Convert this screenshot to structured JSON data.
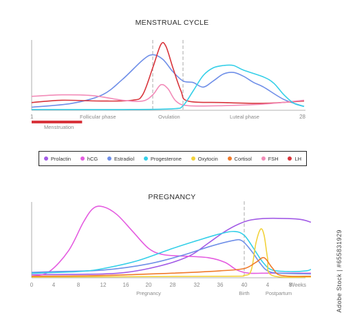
{
  "chart_data": [
    {
      "type": "line",
      "title": "MENSTRUAL CYCLE",
      "x_range": [
        1,
        28
      ],
      "x_end_labels": [
        "1",
        "28"
      ],
      "phase_labels": [
        "Follicular phase",
        "Ovulation",
        "Luteal phase"
      ],
      "band_label": "Menstruation",
      "band_range": [
        1,
        6
      ],
      "ovulation_window": [
        13,
        16
      ],
      "series": [
        {
          "name": "Estradiol",
          "color": "#6f8fe8",
          "points": [
            [
              1,
              0.04
            ],
            [
              5,
              0.09
            ],
            [
              8,
              0.2
            ],
            [
              10,
              0.4
            ],
            [
              12,
              0.65
            ],
            [
              13,
              0.72
            ],
            [
              14,
              0.66
            ],
            [
              15,
              0.5
            ],
            [
              16,
              0.38
            ],
            [
              17,
              0.36
            ],
            [
              18,
              0.3
            ],
            [
              19,
              0.38
            ],
            [
              20,
              0.47
            ],
            [
              21,
              0.49
            ],
            [
              22,
              0.44
            ],
            [
              23,
              0.36
            ],
            [
              24,
              0.3
            ],
            [
              26,
              0.14
            ],
            [
              28,
              0.05
            ]
          ]
        },
        {
          "name": "LH",
          "color": "#d8343b",
          "points": [
            [
              1,
              0.1
            ],
            [
              4,
              0.13
            ],
            [
              8,
              0.12
            ],
            [
              11,
              0.13
            ],
            [
              12,
              0.2
            ],
            [
              13,
              0.55
            ],
            [
              13.8,
              0.85
            ],
            [
              14.3,
              0.83
            ],
            [
              15,
              0.55
            ],
            [
              15.8,
              0.25
            ],
            [
              16.5,
              0.12
            ],
            [
              20,
              0.1
            ],
            [
              24,
              0.09
            ],
            [
              28,
              0.12
            ]
          ]
        },
        {
          "name": "FSH",
          "color": "#f28bb8",
          "points": [
            [
              1,
              0.18
            ],
            [
              4,
              0.2
            ],
            [
              7,
              0.19
            ],
            [
              10,
              0.13
            ],
            [
              12,
              0.12
            ],
            [
              13,
              0.2
            ],
            [
              13.8,
              0.33
            ],
            [
              14.5,
              0.28
            ],
            [
              15.3,
              0.12
            ],
            [
              16.5,
              0.06
            ],
            [
              20,
              0.06
            ],
            [
              24,
              0.08
            ],
            [
              28,
              0.13
            ]
          ]
        },
        {
          "name": "Progesterone",
          "color": "#34cfe8",
          "points": [
            [
              1,
              0.01
            ],
            [
              10,
              0.01
            ],
            [
              15,
              0.02
            ],
            [
              16,
              0.06
            ],
            [
              17,
              0.25
            ],
            [
              18,
              0.45
            ],
            [
              19,
              0.55
            ],
            [
              20,
              0.58
            ],
            [
              21,
              0.58
            ],
            [
              22,
              0.52
            ],
            [
              24,
              0.43
            ],
            [
              25,
              0.35
            ],
            [
              26,
              0.2
            ],
            [
              27,
              0.09
            ],
            [
              28,
              0.05
            ]
          ]
        }
      ]
    },
    {
      "type": "line",
      "title": "PREGNANCY",
      "x_ticks": [
        "0",
        "4",
        "8",
        "12",
        "16",
        "20",
        "28",
        "32",
        "36",
        "40",
        "4",
        "8",
        "Weeks"
      ],
      "section_labels": [
        "Pregnancy",
        "Birth",
        "Postpartum"
      ],
      "series": [
        {
          "name": "Prolactin",
          "color": "#a25ae6",
          "points": [
            [
              0,
              0.04
            ],
            [
              3,
              0.05
            ],
            [
              4,
              0.07
            ],
            [
              5,
              0.12
            ],
            [
              6,
              0.2
            ],
            [
              6.8,
              0.3
            ],
            [
              7.5,
              0.45
            ],
            [
              8.2,
              0.6
            ],
            [
              8.8,
              0.7
            ],
            [
              9.3,
              0.75
            ],
            [
              10,
              0.77
            ],
            [
              11.5,
              0.76
            ],
            [
              12.3,
              0.72
            ]
          ]
        },
        {
          "name": "hCG",
          "color": "#e45be0",
          "points": [
            [
              0,
              0.02
            ],
            [
              0.8,
              0.08
            ],
            [
              1.6,
              0.35
            ],
            [
              2.2,
              0.72
            ],
            [
              2.6,
              0.9
            ],
            [
              3,
              0.92
            ],
            [
              3.6,
              0.82
            ],
            [
              4.3,
              0.6
            ],
            [
              5,
              0.38
            ],
            [
              5.6,
              0.3
            ],
            [
              6.5,
              0.28
            ],
            [
              7.5,
              0.26
            ],
            [
              8.2,
              0.2
            ],
            [
              8.7,
              0.1
            ],
            [
              9.2,
              0.06
            ],
            [
              10,
              0.06
            ],
            [
              12.3,
              0.06
            ]
          ]
        },
        {
          "name": "Estradiol",
          "color": "#6f8fe8",
          "points": [
            [
              0,
              0.07
            ],
            [
              1,
              0.08
            ],
            [
              3,
              0.1
            ],
            [
              5,
              0.18
            ],
            [
              6.5,
              0.3
            ],
            [
              7.5,
              0.4
            ],
            [
              8.5,
              0.48
            ],
            [
              8.9,
              0.48
            ],
            [
              9.3,
              0.35
            ],
            [
              9.7,
              0.18
            ],
            [
              10,
              0.09
            ],
            [
              10.5,
              0.06
            ],
            [
              12.3,
              0.05
            ]
          ]
        },
        {
          "name": "Progesterone",
          "color": "#34cfe8",
          "points": [
            [
              0,
              0.06
            ],
            [
              2,
              0.08
            ],
            [
              3,
              0.12
            ],
            [
              4.5,
              0.22
            ],
            [
              6,
              0.38
            ],
            [
              7,
              0.48
            ],
            [
              8,
              0.57
            ],
            [
              8.6,
              0.6
            ],
            [
              9,
              0.55
            ],
            [
              9.4,
              0.38
            ],
            [
              9.8,
              0.2
            ],
            [
              10.2,
              0.1
            ],
            [
              11,
              0.08
            ],
            [
              12,
              0.09
            ],
            [
              12.3,
              0.11
            ]
          ]
        },
        {
          "name": "Oxytocin",
          "color": "#f2d23a",
          "points": [
            [
              0,
              0.01
            ],
            [
              8,
              0.02
            ],
            [
              9,
              0.03
            ],
            [
              9.3,
              0.1
            ],
            [
              9.5,
              0.45
            ],
            [
              9.7,
              0.63
            ],
            [
              9.85,
              0.55
            ],
            [
              10,
              0.25
            ],
            [
              10.2,
              0.03
            ],
            [
              12.3,
              0.01
            ]
          ]
        },
        {
          "name": "Cortisol",
          "color": "#f07a2a",
          "points": [
            [
              0,
              0.02
            ],
            [
              3,
              0.03
            ],
            [
              6,
              0.06
            ],
            [
              8,
              0.09
            ],
            [
              9,
              0.12
            ],
            [
              9.5,
              0.2
            ],
            [
              9.85,
              0.26
            ],
            [
              10.2,
              0.13
            ],
            [
              10.6,
              0.03
            ],
            [
              12.3,
              0.02
            ]
          ]
        }
      ]
    }
  ],
  "legend": [
    {
      "name": "Prolactin",
      "color": "#a25ae6"
    },
    {
      "name": "hCG",
      "color": "#e45be0"
    },
    {
      "name": "Estradiol",
      "color": "#6f8fe8"
    },
    {
      "name": "Progesterone",
      "color": "#34cfe8"
    },
    {
      "name": "Oxytocin",
      "color": "#f2d23a"
    },
    {
      "name": "Cortisol",
      "color": "#f07a2a"
    },
    {
      "name": "FSH",
      "color": "#f28bb8"
    },
    {
      "name": "LH",
      "color": "#d8343b"
    }
  ],
  "watermark": "Adobe Stock | #655831929"
}
